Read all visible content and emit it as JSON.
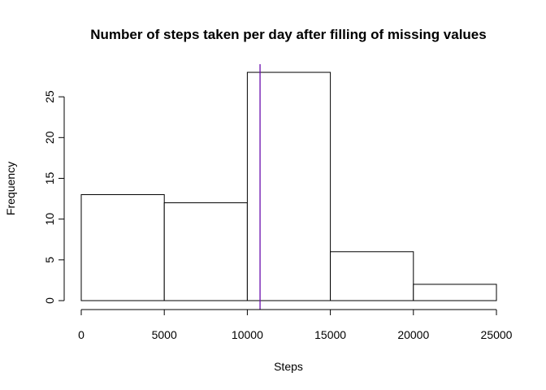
{
  "chart_data": {
    "type": "bar",
    "title": "Number of steps taken per day after filling of missing values",
    "xlabel": "Steps",
    "ylabel": "Frequency",
    "bins": [
      {
        "start": 0,
        "end": 5000,
        "count": 13
      },
      {
        "start": 5000,
        "end": 10000,
        "count": 12
      },
      {
        "start": 10000,
        "end": 15000,
        "count": 28
      },
      {
        "start": 15000,
        "end": 20000,
        "count": 6
      },
      {
        "start": 20000,
        "end": 25000,
        "count": 2
      }
    ],
    "xlim": [
      0,
      25000
    ],
    "ylim": [
      0,
      29
    ],
    "x_ticks": [
      0,
      5000,
      10000,
      15000,
      20000,
      25000
    ],
    "y_ticks": [
      0,
      5,
      10,
      15,
      20,
      25
    ],
    "x_tick_labels": [
      "0",
      "5000",
      "10000",
      "15000",
      "20000",
      "25000"
    ],
    "y_tick_labels": [
      "0",
      "5",
      "10",
      "15",
      "20",
      "25"
    ],
    "vline": {
      "x": 10766,
      "color": "#6a0dad"
    },
    "grid": false,
    "bar_fill": "#ffffff",
    "bar_stroke": "#000000"
  }
}
